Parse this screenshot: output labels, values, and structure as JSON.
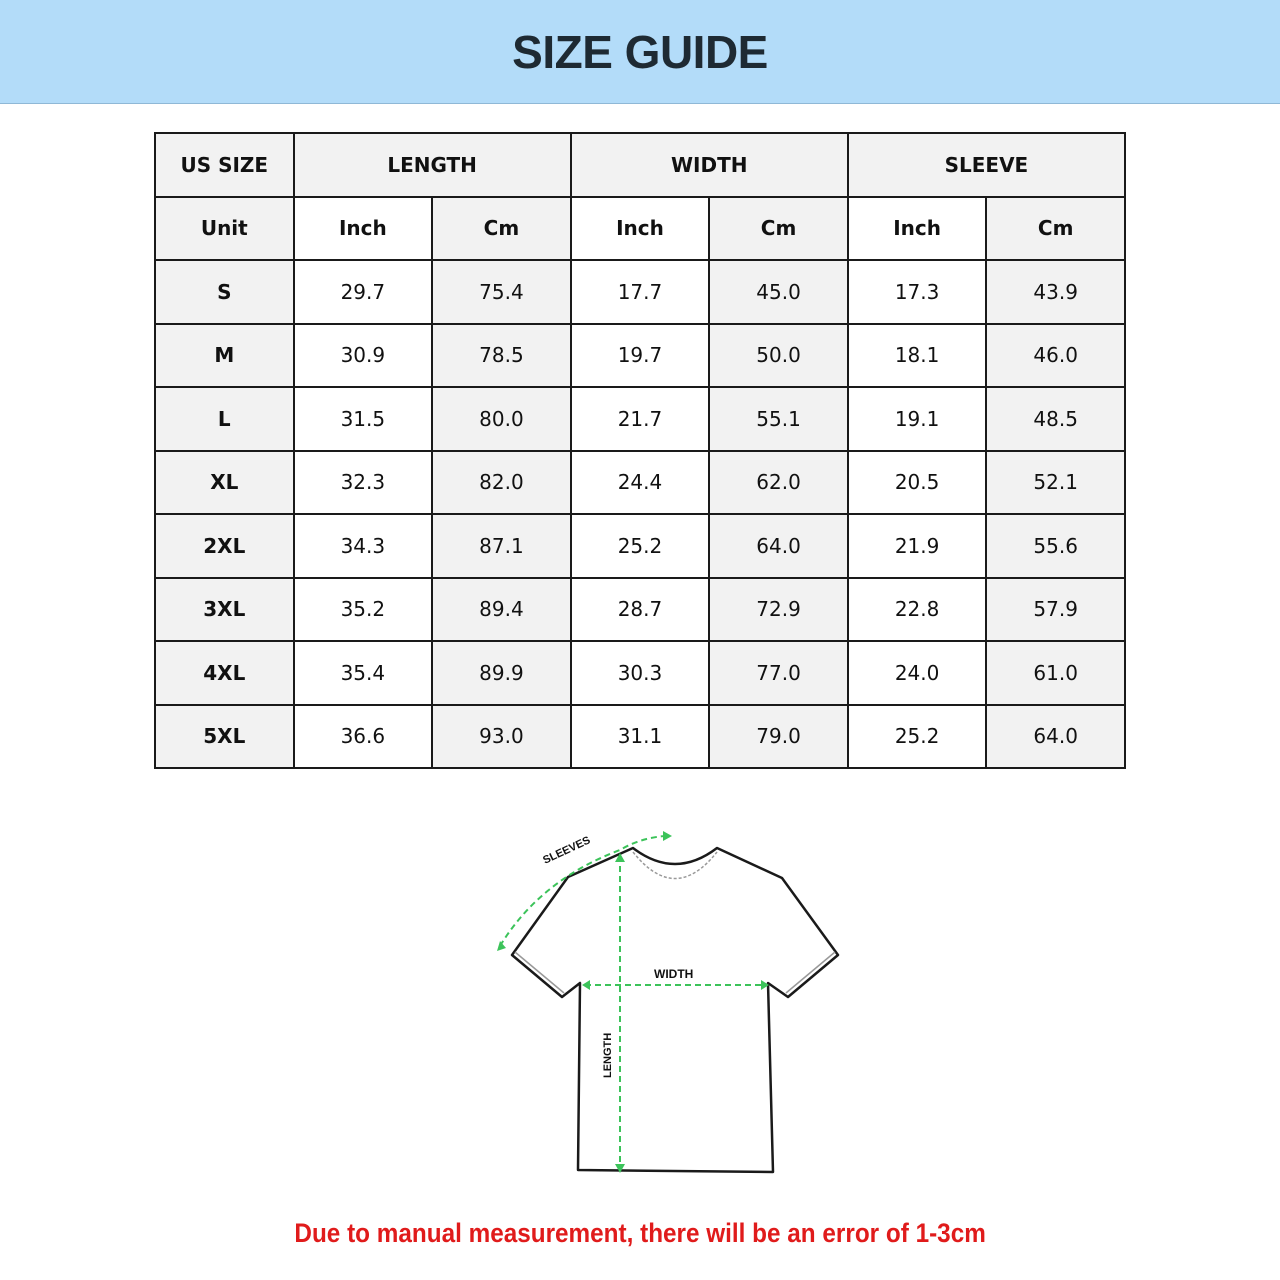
{
  "title": "SIZE GUIDE",
  "table": {
    "group_headers": [
      "US SIZE",
      "LENGTH",
      "WIDTH",
      "SLEEVE"
    ],
    "unit_row": [
      "Unit",
      "Inch",
      "Cm",
      "Inch",
      "Cm",
      "Inch",
      "Cm"
    ],
    "rows": [
      [
        "S",
        "29.7",
        "75.4",
        "17.7",
        "45.0",
        "17.3",
        "43.9"
      ],
      [
        "M",
        "30.9",
        "78.5",
        "19.7",
        "50.0",
        "18.1",
        "46.0"
      ],
      [
        "L",
        "31.5",
        "80.0",
        "21.7",
        "55.1",
        "19.1",
        "48.5"
      ],
      [
        "XL",
        "32.3",
        "82.0",
        "24.4",
        "62.0",
        "20.5",
        "52.1"
      ],
      [
        "2XL",
        "34.3",
        "87.1",
        "25.2",
        "64.0",
        "21.9",
        "55.6"
      ],
      [
        "3XL",
        "35.2",
        "89.4",
        "28.7",
        "72.9",
        "22.8",
        "57.9"
      ],
      [
        "4XL",
        "35.4",
        "89.9",
        "30.3",
        "77.0",
        "24.0",
        "61.0"
      ],
      [
        "5XL",
        "36.6",
        "93.0",
        "31.1",
        "79.0",
        "25.2",
        "64.0"
      ]
    ]
  },
  "diagram": {
    "labels": {
      "sleeves": "SLEEVES",
      "width": "WIDTH",
      "length": "LENGTH"
    },
    "measure_color": "#3cc35a"
  },
  "note": "Due to manual measurement, there will be an error of 1-3cm",
  "colors": {
    "banner": "#b3dcf9",
    "note": "#e01b1b"
  }
}
